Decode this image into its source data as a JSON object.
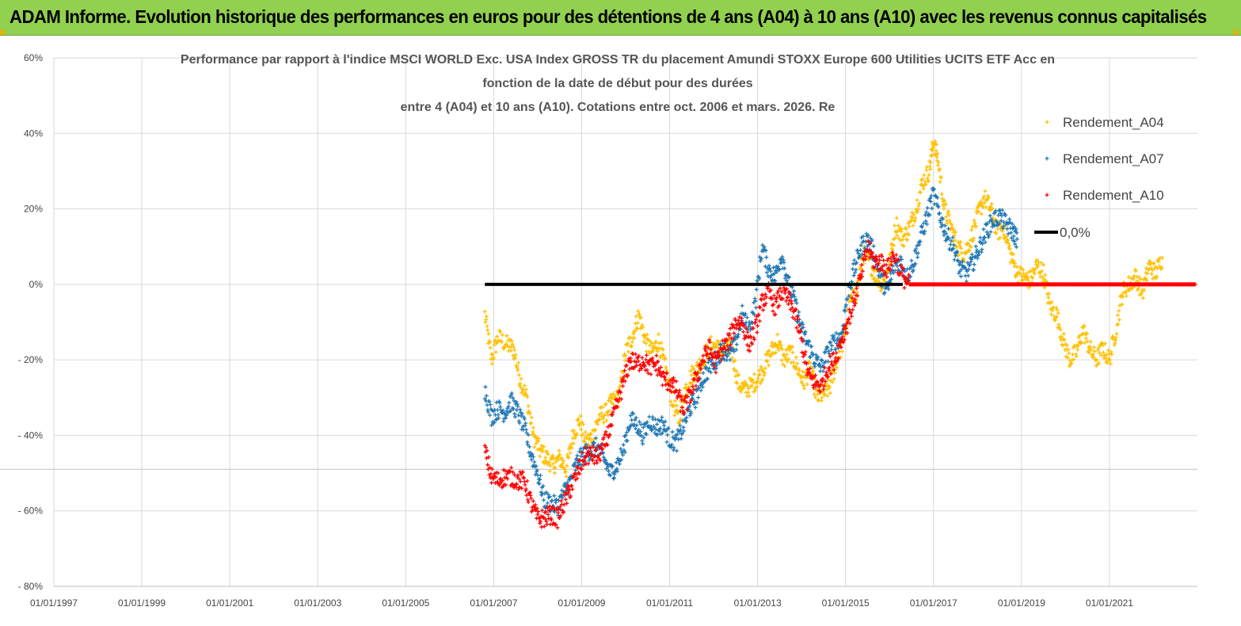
{
  "header": {
    "title": "ADAM Informe. Evolution historique des performances en euros pour des détentions de 4 ans (A04) à 10 ans (A10) avec les revenus connus capitalisés",
    "background": "#92d050"
  },
  "chart_data": {
    "type": "scatter",
    "title_lines": [
      "Performance par rapport à l'indice MSCI WORLD Exc. USA Index GROSS TR  du placement Amundi STOXX Europe 600 Utilities UCITS ETF Acc en",
      "fonction de la date de début pour des durées",
      "entre 4 (A04) et 10 ans (A10). Cotations entre oct. 2006 et mars. 2026. Re"
    ],
    "x_ticks": [
      "01/01/1997",
      "01/01/1999",
      "01/01/2001",
      "01/01/2003",
      "01/01/2005",
      "01/01/2007",
      "01/01/2009",
      "01/01/2011",
      "01/01/2013",
      "01/01/2015",
      "01/01/2017",
      "01/01/2019",
      "01/01/2021"
    ],
    "xlim": [
      1997.0,
      2023.0
    ],
    "y_ticks": [
      "60%",
      "40%",
      "20%",
      "0%",
      "- 20%",
      "- 40%",
      "- 60%",
      "- 80%"
    ],
    "y_tick_values": [
      60,
      40,
      20,
      0,
      -20,
      -40,
      -60,
      -80
    ],
    "ylim": [
      -80,
      60
    ],
    "grid": true,
    "legend_position": "top-right",
    "series": [
      {
        "name": "Rendement_A04",
        "color": "#ffc000",
        "marker": "+",
        "points": [
          [
            2006.8,
            -8
          ],
          [
            2006.95,
            -20
          ],
          [
            2007.1,
            -14
          ],
          [
            2007.3,
            -16
          ],
          [
            2007.45,
            -17
          ],
          [
            2007.6,
            -25
          ],
          [
            2007.75,
            -30
          ],
          [
            2007.9,
            -40
          ],
          [
            2008.05,
            -44
          ],
          [
            2008.2,
            -46
          ],
          [
            2008.35,
            -48
          ],
          [
            2008.5,
            -46
          ],
          [
            2008.65,
            -49
          ],
          [
            2008.8,
            -40
          ],
          [
            2008.95,
            -36
          ],
          [
            2009.1,
            -42
          ],
          [
            2009.25,
            -40
          ],
          [
            2009.4,
            -35
          ],
          [
            2009.55,
            -34
          ],
          [
            2009.7,
            -31
          ],
          [
            2009.85,
            -30
          ],
          [
            2010.0,
            -18
          ],
          [
            2010.15,
            -14
          ],
          [
            2010.3,
            -8
          ],
          [
            2010.45,
            -15
          ],
          [
            2010.6,
            -18
          ],
          [
            2010.75,
            -15
          ],
          [
            2010.9,
            -22
          ],
          [
            2011.05,
            -30
          ],
          [
            2011.2,
            -36
          ],
          [
            2011.35,
            -28
          ],
          [
            2011.5,
            -24
          ],
          [
            2011.65,
            -22
          ],
          [
            2011.8,
            -19
          ],
          [
            2011.95,
            -16
          ],
          [
            2012.1,
            -17
          ],
          [
            2012.25,
            -18
          ],
          [
            2012.4,
            -16
          ],
          [
            2012.55,
            -26
          ],
          [
            2012.7,
            -28
          ],
          [
            2012.85,
            -27
          ],
          [
            2013.0,
            -25
          ],
          [
            2013.15,
            -22
          ],
          [
            2013.3,
            -18
          ],
          [
            2013.45,
            -15
          ],
          [
            2013.6,
            -20
          ],
          [
            2013.75,
            -18
          ],
          [
            2013.9,
            -22
          ],
          [
            2014.05,
            -26
          ],
          [
            2014.2,
            -22
          ],
          [
            2014.35,
            -30
          ],
          [
            2014.5,
            -29
          ],
          [
            2014.65,
            -27
          ],
          [
            2014.8,
            -20
          ],
          [
            2014.95,
            -15
          ],
          [
            2015.1,
            -5
          ],
          [
            2015.25,
            -2
          ],
          [
            2015.4,
            8
          ],
          [
            2015.55,
            6
          ],
          [
            2015.7,
            2
          ],
          [
            2015.85,
            0
          ],
          [
            2016.0,
            6
          ],
          [
            2016.15,
            16
          ],
          [
            2016.3,
            12
          ],
          [
            2016.45,
            15
          ],
          [
            2016.6,
            20
          ],
          [
            2016.75,
            27
          ],
          [
            2016.9,
            30
          ],
          [
            2017.0,
            38
          ],
          [
            2017.1,
            33
          ],
          [
            2017.25,
            20
          ],
          [
            2017.4,
            15
          ],
          [
            2017.55,
            10
          ],
          [
            2017.7,
            8
          ],
          [
            2017.85,
            12
          ],
          [
            2018.0,
            18
          ],
          [
            2018.15,
            23
          ],
          [
            2018.3,
            20
          ],
          [
            2018.45,
            14
          ],
          [
            2018.6,
            15
          ],
          [
            2018.75,
            8
          ],
          [
            2018.9,
            3
          ],
          [
            2019.05,
            2
          ],
          [
            2019.2,
            1
          ],
          [
            2019.35,
            5
          ],
          [
            2019.5,
            3
          ],
          [
            2019.65,
            -6
          ],
          [
            2019.8,
            -8
          ],
          [
            2019.95,
            -15
          ],
          [
            2020.1,
            -20
          ],
          [
            2020.25,
            -18
          ],
          [
            2020.4,
            -12
          ],
          [
            2020.55,
            -17
          ],
          [
            2020.7,
            -20
          ],
          [
            2020.85,
            -17
          ],
          [
            2021.0,
            -20
          ],
          [
            2021.15,
            -12
          ],
          [
            2021.3,
            -2
          ],
          [
            2021.45,
            0
          ],
          [
            2021.6,
            2
          ],
          [
            2021.75,
            -2
          ],
          [
            2021.9,
            5
          ],
          [
            2022.05,
            3
          ],
          [
            2022.2,
            7
          ]
        ]
      },
      {
        "name": "Rendement_A07",
        "color": "#1f77b4",
        "marker": "+",
        "points": [
          [
            2006.8,
            -28
          ],
          [
            2006.95,
            -35
          ],
          [
            2007.1,
            -33
          ],
          [
            2007.25,
            -34
          ],
          [
            2007.4,
            -31
          ],
          [
            2007.55,
            -34
          ],
          [
            2007.7,
            -38
          ],
          [
            2007.85,
            -45
          ],
          [
            2008.0,
            -50
          ],
          [
            2008.15,
            -57
          ],
          [
            2008.3,
            -58
          ],
          [
            2008.45,
            -59
          ],
          [
            2008.6,
            -55
          ],
          [
            2008.75,
            -52
          ],
          [
            2008.9,
            -47
          ],
          [
            2009.05,
            -45
          ],
          [
            2009.2,
            -44
          ],
          [
            2009.35,
            -43
          ],
          [
            2009.5,
            -46
          ],
          [
            2009.65,
            -50
          ],
          [
            2009.8,
            -48
          ],
          [
            2009.95,
            -44
          ],
          [
            2010.1,
            -36
          ],
          [
            2010.25,
            -37
          ],
          [
            2010.4,
            -40
          ],
          [
            2010.55,
            -36
          ],
          [
            2010.7,
            -38
          ],
          [
            2010.85,
            -37
          ],
          [
            2011.0,
            -41
          ],
          [
            2011.15,
            -42
          ],
          [
            2011.3,
            -38
          ],
          [
            2011.45,
            -33
          ],
          [
            2011.6,
            -30
          ],
          [
            2011.75,
            -25
          ],
          [
            2011.9,
            -22
          ],
          [
            2012.05,
            -20
          ],
          [
            2012.2,
            -17
          ],
          [
            2012.35,
            -19
          ],
          [
            2012.5,
            -16
          ],
          [
            2012.65,
            -8
          ],
          [
            2012.8,
            -12
          ],
          [
            2012.95,
            -5
          ],
          [
            2013.1,
            10
          ],
          [
            2013.25,
            4
          ],
          [
            2013.4,
            2
          ],
          [
            2013.55,
            8
          ],
          [
            2013.7,
            0
          ],
          [
            2013.85,
            -5
          ],
          [
            2014.0,
            -12
          ],
          [
            2014.15,
            -16
          ],
          [
            2014.3,
            -20
          ],
          [
            2014.45,
            -22
          ],
          [
            2014.6,
            -18
          ],
          [
            2014.75,
            -15
          ],
          [
            2014.9,
            -14
          ],
          [
            2015.05,
            -2
          ],
          [
            2015.2,
            4
          ],
          [
            2015.35,
            10
          ],
          [
            2015.5,
            12
          ],
          [
            2015.65,
            8
          ],
          [
            2015.8,
            2
          ],
          [
            2015.95,
            -2
          ],
          [
            2016.1,
            5
          ],
          [
            2016.25,
            6
          ],
          [
            2016.4,
            2
          ],
          [
            2016.55,
            6
          ],
          [
            2016.7,
            12
          ],
          [
            2016.85,
            18
          ],
          [
            2017.0,
            24
          ],
          [
            2017.15,
            18
          ],
          [
            2017.3,
            13
          ],
          [
            2017.45,
            10
          ],
          [
            2017.6,
            4
          ],
          [
            2017.75,
            3
          ],
          [
            2017.9,
            6
          ],
          [
            2018.05,
            10
          ],
          [
            2018.2,
            14
          ],
          [
            2018.35,
            17
          ],
          [
            2018.5,
            18
          ],
          [
            2018.65,
            16
          ],
          [
            2018.8,
            14
          ],
          [
            2018.9,
            12
          ]
        ]
      },
      {
        "name": "Rendement_A10",
        "color": "#ff0000",
        "marker": "+",
        "points": [
          [
            2006.8,
            -44
          ],
          [
            2006.95,
            -51
          ],
          [
            2007.1,
            -52
          ],
          [
            2007.25,
            -51
          ],
          [
            2007.4,
            -51
          ],
          [
            2007.55,
            -52
          ],
          [
            2007.7,
            -52
          ],
          [
            2007.85,
            -58
          ],
          [
            2008.0,
            -62
          ],
          [
            2008.15,
            -62
          ],
          [
            2008.3,
            -61
          ],
          [
            2008.45,
            -62
          ],
          [
            2008.6,
            -58
          ],
          [
            2008.75,
            -54
          ],
          [
            2008.9,
            -50
          ],
          [
            2009.05,
            -46
          ],
          [
            2009.2,
            -45
          ],
          [
            2009.35,
            -46
          ],
          [
            2009.5,
            -43
          ],
          [
            2009.65,
            -38
          ],
          [
            2009.8,
            -32
          ],
          [
            2009.95,
            -26
          ],
          [
            2010.1,
            -20
          ],
          [
            2010.25,
            -21
          ],
          [
            2010.4,
            -20
          ],
          [
            2010.55,
            -22
          ],
          [
            2010.7,
            -21
          ],
          [
            2010.85,
            -25
          ],
          [
            2011.0,
            -26
          ],
          [
            2011.15,
            -28
          ],
          [
            2011.3,
            -33
          ],
          [
            2011.45,
            -30
          ],
          [
            2011.6,
            -25
          ],
          [
            2011.75,
            -20
          ],
          [
            2011.9,
            -17
          ],
          [
            2012.05,
            -21
          ],
          [
            2012.2,
            -17
          ],
          [
            2012.35,
            -15
          ],
          [
            2012.5,
            -10
          ],
          [
            2012.65,
            -10
          ],
          [
            2012.8,
            -16
          ],
          [
            2012.95,
            -12
          ],
          [
            2013.1,
            -5
          ],
          [
            2013.25,
            -2
          ],
          [
            2013.4,
            -6
          ],
          [
            2013.55,
            -2
          ],
          [
            2013.7,
            -4
          ],
          [
            2013.85,
            -8
          ],
          [
            2014.0,
            -15
          ],
          [
            2014.15,
            -24
          ],
          [
            2014.3,
            -26
          ],
          [
            2014.45,
            -27
          ],
          [
            2014.6,
            -22
          ],
          [
            2014.75,
            -20
          ],
          [
            2014.9,
            -15
          ],
          [
            2015.05,
            -10
          ],
          [
            2015.2,
            -4
          ],
          [
            2015.35,
            2
          ],
          [
            2015.5,
            10
          ],
          [
            2015.65,
            6
          ],
          [
            2015.8,
            6
          ],
          [
            2015.95,
            4
          ],
          [
            2016.1,
            8
          ],
          [
            2016.3,
            2
          ],
          [
            2016.45,
            0
          ],
          [
            2016.6,
            0
          ],
          [
            2016.8,
            0
          ],
          [
            2017.0,
            0
          ],
          [
            2017.2,
            0
          ],
          [
            2017.4,
            0
          ],
          [
            2017.6,
            0
          ],
          [
            2017.8,
            0
          ],
          [
            2018.0,
            0
          ],
          [
            2018.2,
            0
          ],
          [
            2018.4,
            0
          ],
          [
            2018.6,
            0
          ],
          [
            2018.8,
            0
          ],
          [
            2019.0,
            0
          ],
          [
            2019.2,
            0
          ],
          [
            2019.4,
            0
          ],
          [
            2019.6,
            0
          ],
          [
            2019.8,
            0
          ],
          [
            2020.0,
            0
          ],
          [
            2020.2,
            0
          ],
          [
            2020.4,
            0
          ],
          [
            2020.6,
            0
          ],
          [
            2020.8,
            0
          ],
          [
            2021.0,
            0
          ],
          [
            2021.2,
            0
          ],
          [
            2021.4,
            0
          ],
          [
            2021.6,
            0
          ],
          [
            2021.8,
            0
          ],
          [
            2022.0,
            0
          ],
          [
            2022.2,
            0
          ],
          [
            2022.4,
            0
          ],
          [
            2022.6,
            0
          ],
          [
            2022.8,
            0
          ],
          [
            2022.95,
            0
          ]
        ]
      },
      {
        "name": "0,0%",
        "color": "#000000",
        "marker": "line",
        "points": [
          [
            2006.8,
            0
          ],
          [
            2016.3,
            0
          ]
        ]
      }
    ]
  }
}
